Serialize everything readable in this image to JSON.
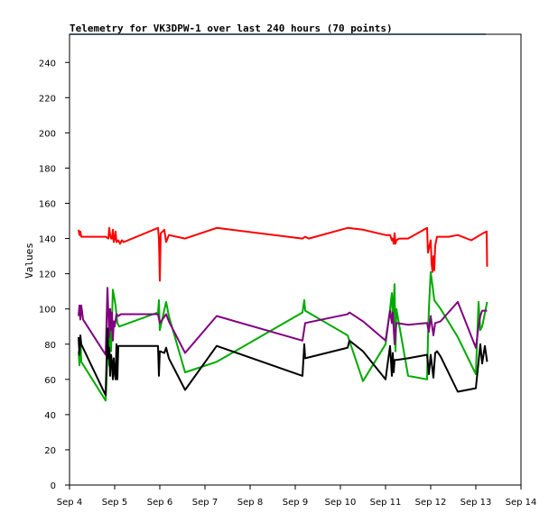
{
  "chart_data": {
    "type": "line",
    "title": "Telemetry for VK3DPW-1 over last 240 hours (70 points)",
    "ylabel": "Values",
    "xlabel": "",
    "ylim": [
      0,
      256
    ],
    "yticks": [
      0,
      20,
      40,
      60,
      80,
      100,
      120,
      140,
      160,
      180,
      200,
      220,
      240
    ],
    "xlim": [
      4.0,
      14.0
    ],
    "xticks": [
      {
        "value": 4,
        "label": "Sep 4"
      },
      {
        "value": 5,
        "label": "Sep 5"
      },
      {
        "value": 6,
        "label": "Sep 6"
      },
      {
        "value": 7,
        "label": "Sep 7"
      },
      {
        "value": 8,
        "label": "Sep 8"
      },
      {
        "value": 9,
        "label": "Sep 9"
      },
      {
        "value": 10,
        "label": "Sep 10"
      },
      {
        "value": 11,
        "label": "Sep 11"
      },
      {
        "value": 12,
        "label": "Sep 12"
      },
      {
        "value": 13,
        "label": "Sep 13"
      },
      {
        "value": 14,
        "label": "Sep 14"
      }
    ],
    "grid": false,
    "colors": {
      "frame": "#000000",
      "top_line": "#1a6aa8"
    },
    "series": [
      {
        "color": "#ff0000",
        "x": [
          4.2,
          4.22,
          4.24,
          4.26,
          4.8,
          4.86,
          4.88,
          4.9,
          4.92,
          4.94,
          4.96,
          4.98,
          5.0,
          5.02,
          5.04,
          5.08,
          5.12,
          5.16,
          5.2,
          5.96,
          5.98,
          6.0,
          6.02,
          6.06,
          6.1,
          6.14,
          6.2,
          6.56,
          7.26,
          9.16,
          9.22,
          9.3,
          10.16,
          10.5,
          11.0,
          11.1,
          11.14,
          11.16,
          11.18,
          11.2,
          11.22,
          11.24,
          11.3,
          11.5,
          11.92,
          11.94,
          12.0,
          12.02,
          12.04,
          12.06,
          12.08,
          12.1,
          12.14,
          12.22,
          12.4,
          12.6,
          12.9,
          13.16,
          13.24,
          13.25
        ],
        "values": [
          145,
          142,
          144,
          141,
          141,
          140,
          146,
          142,
          140,
          140,
          145,
          138,
          140,
          144,
          138,
          139,
          137,
          139,
          138,
          146,
          140,
          116,
          143,
          144,
          145,
          138,
          142,
          140,
          146,
          140,
          141,
          140,
          146,
          145,
          142,
          142,
          139,
          140,
          137,
          143,
          137,
          139,
          140,
          140,
          146,
          132,
          139,
          126,
          121,
          130,
          122,
          136,
          141,
          141,
          141,
          142,
          139,
          143,
          144,
          124
        ]
      },
      {
        "color": "#00aa00",
        "x": [
          4.2,
          4.22,
          4.24,
          4.26,
          4.8,
          4.82,
          4.86,
          4.88,
          4.9,
          4.92,
          4.94,
          4.96,
          5.02,
          5.06,
          5.1,
          5.96,
          5.98,
          6.0,
          6.14,
          6.2,
          6.56,
          7.26,
          9.16,
          9.2,
          9.22,
          10.16,
          10.5,
          11.0,
          11.1,
          11.14,
          11.16,
          11.18,
          11.2,
          11.22,
          11.24,
          11.5,
          11.92,
          11.94,
          11.96,
          12.0,
          12.08,
          12.22,
          12.6,
          13.0,
          13.06,
          13.1,
          13.14,
          13.25
        ],
        "values": [
          76,
          68,
          84,
          70,
          48,
          60,
          86,
          68,
          98,
          76,
          94,
          111,
          102,
          92,
          90,
          98,
          105,
          88,
          104,
          96,
          64,
          70,
          98,
          105,
          99,
          85,
          59,
          80,
          100,
          109,
          92,
          105,
          114,
          76,
          100,
          62,
          60,
          84,
          100,
          121,
          105,
          100,
          84,
          63,
          104,
          88,
          90,
          104
        ]
      },
      {
        "color": "#800080",
        "x": [
          4.2,
          4.22,
          4.24,
          4.26,
          4.3,
          4.8,
          4.84,
          4.88,
          4.9,
          4.92,
          4.94,
          4.96,
          4.98,
          5.0,
          5.04,
          5.08,
          5.14,
          5.96,
          6.0,
          6.14,
          6.2,
          6.56,
          7.26,
          9.16,
          9.22,
          10.16,
          10.2,
          10.5,
          11.0,
          11.1,
          11.14,
          11.16,
          11.2,
          11.24,
          11.5,
          11.92,
          11.96,
          12.0,
          12.06,
          12.1,
          12.22,
          12.6,
          13.0,
          13.06,
          13.1,
          13.14,
          13.25
        ],
        "values": [
          96,
          102,
          94,
          102,
          94,
          74,
          112,
          84,
          100,
          88,
          98,
          82,
          93,
          90,
          97,
          96,
          97,
          97,
          92,
          97,
          93,
          75,
          96,
          82,
          92,
          97,
          98,
          93,
          82,
          99,
          92,
          98,
          80,
          92,
          91,
          92,
          87,
          96,
          85,
          92,
          93,
          104,
          78,
          90,
          96,
          99,
          99
        ]
      },
      {
        "color": "#000000",
        "x": [
          4.2,
          4.22,
          4.24,
          4.26,
          4.8,
          4.84,
          4.86,
          4.88,
          4.9,
          4.92,
          4.94,
          4.96,
          4.98,
          5.0,
          5.02,
          5.04,
          5.06,
          5.08,
          5.1,
          5.96,
          5.98,
          6.0,
          6.1,
          6.14,
          6.2,
          6.56,
          7.26,
          9.16,
          9.2,
          9.22,
          10.16,
          10.2,
          10.5,
          11.0,
          11.1,
          11.14,
          11.16,
          11.18,
          11.2,
          11.24,
          11.5,
          11.92,
          11.96,
          12.0,
          12.06,
          12.1,
          12.14,
          12.22,
          12.6,
          13.0,
          13.1,
          13.14,
          13.2,
          13.25
        ],
        "values": [
          84,
          74,
          85,
          80,
          51,
          89,
          72,
          78,
          62,
          74,
          70,
          60,
          72,
          64,
          60,
          80,
          60,
          79,
          79,
          79,
          62,
          76,
          75,
          78,
          72,
          54,
          79,
          62,
          80,
          72,
          78,
          82,
          76,
          60,
          79,
          62,
          75,
          64,
          71,
          71,
          72,
          74,
          63,
          74,
          61,
          75,
          76,
          73,
          53,
          55,
          80,
          69,
          79,
          70
        ]
      }
    ]
  }
}
